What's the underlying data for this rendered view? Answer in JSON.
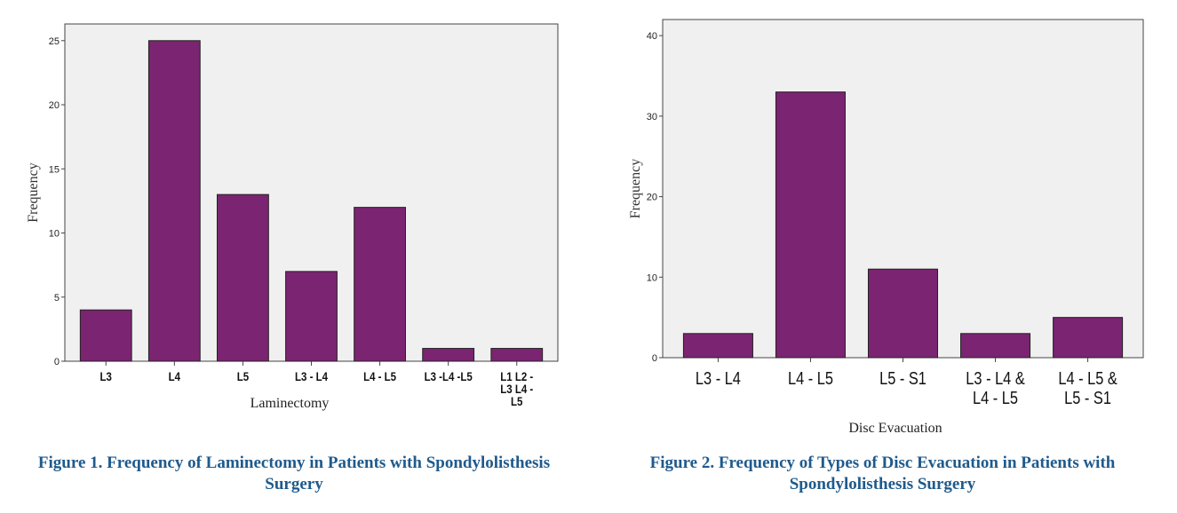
{
  "chart_data": [
    {
      "type": "bar",
      "categories": [
        "L3",
        "L4",
        "L5",
        "L3 - L4",
        "L4 - L5",
        "L3 -L4 -L5",
        "L1 L2 -|L3 L4 -|L5"
      ],
      "values": [
        4,
        25,
        13,
        7,
        12,
        1,
        1
      ],
      "xlabel": "Laminectomy",
      "ylabel": "Frequency",
      "ylim": [
        0,
        26.3
      ],
      "yticks": [
        "0",
        "5",
        "10",
        "15",
        "20",
        "25"
      ],
      "grid": false,
      "bar_color": "#7b2471",
      "plot_bg": "#f0f0f0",
      "caption_lines": [
        "Figure 1. Frequency of Laminectomy in Patients with Spondylolisthesis",
        "Surgery"
      ]
    },
    {
      "type": "bar",
      "categories": [
        "L3 - L4",
        "L4 - L5",
        "L5 - S1",
        "L3 - L4 &|L4 - L5",
        "L4 - L5 &|L5 - S1"
      ],
      "values": [
        3,
        33,
        11,
        3,
        5
      ],
      "xlabel": "Disc Evacuation",
      "ylabel": "Frequency",
      "ylim": [
        0,
        42
      ],
      "yticks": [
        "0",
        "10",
        "20",
        "30",
        "40"
      ],
      "grid": false,
      "bar_color": "#7b2471",
      "plot_bg": "#f0f0f0",
      "caption_lines": [
        "Figure 2. Frequency of Types of Disc Evacuation in Patients with",
        "Spondylolisthesis Surgery"
      ]
    }
  ],
  "colors": {
    "caption": "#1f5a8c",
    "bar": "#7b2471",
    "plot_bg": "#f0f0f0",
    "axis": "#444444"
  }
}
